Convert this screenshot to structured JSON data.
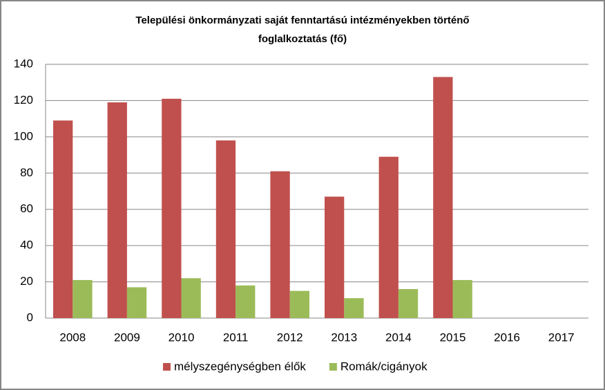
{
  "chart_data": {
    "type": "bar",
    "title": [
      "Települési önkormányzati saját fenntartású intézményekben történő",
      "foglalkoztatás (fő)"
    ],
    "categories": [
      "2008",
      "2009",
      "2010",
      "2011",
      "2012",
      "2013",
      "2014",
      "2015",
      "2016",
      "2017"
    ],
    "series": [
      {
        "name": "mélyszegénységben élők",
        "color": "#c0504d",
        "values": [
          109,
          119,
          121,
          98,
          81,
          67,
          89,
          133,
          null,
          null
        ]
      },
      {
        "name": "Romák/cigányok",
        "color": "#9bbb59",
        "values": [
          21,
          17,
          22,
          18,
          15,
          11,
          16,
          21,
          null,
          null
        ]
      }
    ],
    "ylim": [
      0,
      140
    ],
    "yticks": [
      0,
      20,
      40,
      60,
      80,
      100,
      120,
      140
    ],
    "grid": true,
    "legend": "bottom"
  }
}
